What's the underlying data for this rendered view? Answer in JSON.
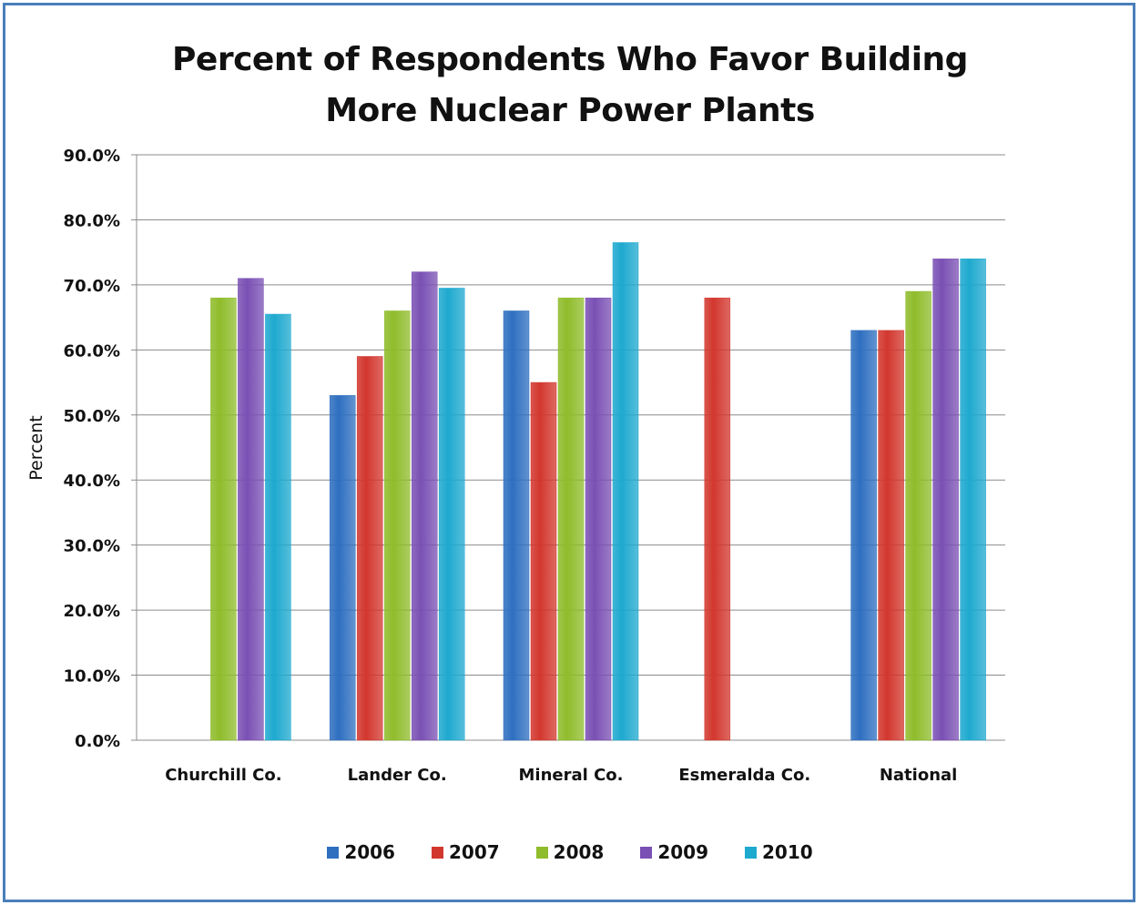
{
  "chart_data": {
    "type": "bar",
    "title": "Percent of Respondents Who Favor Building More Nuclear Power Plants",
    "title_lines": [
      "Percent of Respondents Who Favor Building",
      "More Nuclear Power Plants"
    ],
    "ylabel": "Percent",
    "xlabel": "",
    "ylim": [
      0,
      90
    ],
    "y_ticks": [
      "0.0%",
      "10.0%",
      "20.0%",
      "30.0%",
      "40.0%",
      "50.0%",
      "60.0%",
      "70.0%",
      "80.0%",
      "90.0%"
    ],
    "categories": [
      "Churchill Co.",
      "Lander Co.",
      "Mineral Co.",
      "Esmeralda Co.",
      "National"
    ],
    "series": [
      {
        "name": "2006",
        "color": "#2e6fc0",
        "values": [
          null,
          53,
          66,
          null,
          63
        ]
      },
      {
        "name": "2007",
        "color": "#d2372e",
        "values": [
          null,
          59,
          55,
          68,
          63
        ]
      },
      {
        "name": "2008",
        "color": "#8fbc2b",
        "values": [
          68,
          66,
          68,
          null,
          69
        ]
      },
      {
        "name": "2009",
        "color": "#7a50b4",
        "values": [
          71,
          72,
          68,
          null,
          74
        ]
      },
      {
        "name": "2010",
        "color": "#1ea9cf",
        "values": [
          65.5,
          69.5,
          76.5,
          null,
          74
        ]
      }
    ],
    "grid": true,
    "legend_position": "bottom"
  }
}
